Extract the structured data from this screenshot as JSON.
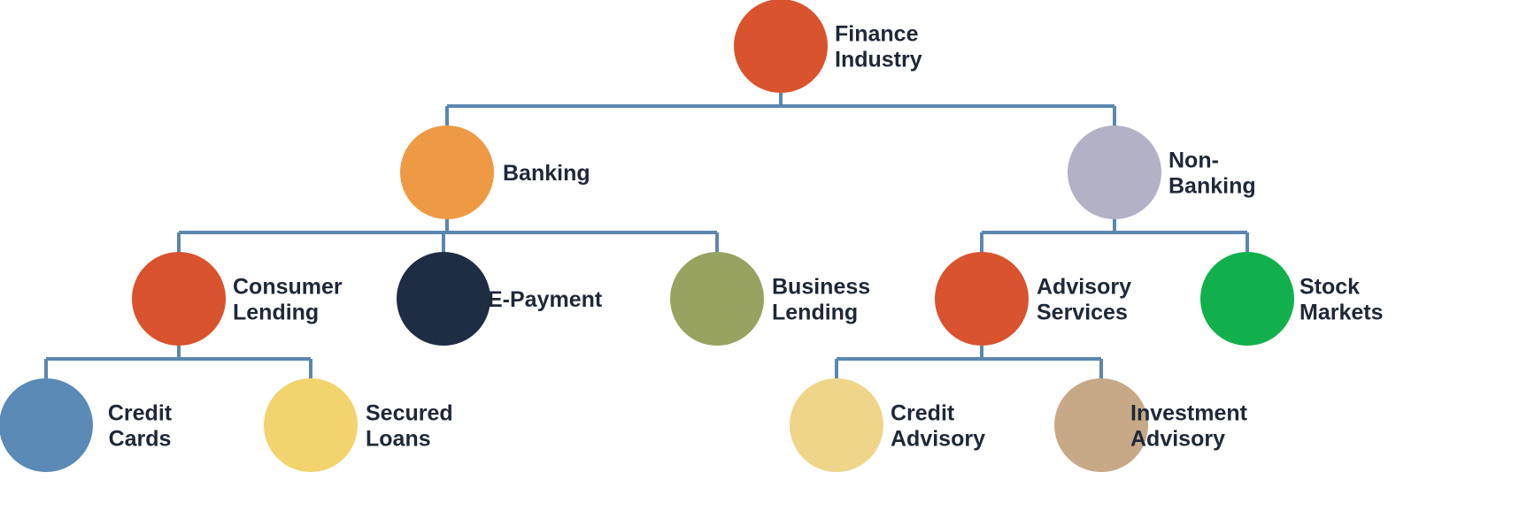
{
  "diagram": {
    "nodes": [
      {
        "id": "finance-industry",
        "label": [
          "Finance",
          "Industry"
        ],
        "color": "#d9532e"
      },
      {
        "id": "banking",
        "label": [
          "Banking"
        ],
        "color": "#ee9a45"
      },
      {
        "id": "non-banking",
        "label": [
          "Non-",
          "Banking"
        ],
        "color": "#b2b1c6"
      },
      {
        "id": "consumer-lending",
        "label": [
          "Consumer",
          "Lending"
        ],
        "color": "#d9532e"
      },
      {
        "id": "e-payment",
        "label": [
          "E-Payment"
        ],
        "color": "#1f2d44"
      },
      {
        "id": "business-lending",
        "label": [
          "Business",
          "Lending"
        ],
        "color": "#98a261"
      },
      {
        "id": "advisory-services",
        "label": [
          "Advisory",
          "Services"
        ],
        "color": "#d9532e"
      },
      {
        "id": "stock-markets",
        "label": [
          "Stock",
          "Markets"
        ],
        "color": "#12b04d"
      },
      {
        "id": "credit-cards",
        "label": [
          "Credit",
          "Cards"
        ],
        "color": "#5a8ab5"
      },
      {
        "id": "secured-loans",
        "label": [
          "Secured",
          "Loans"
        ],
        "color": "#f2d36d"
      },
      {
        "id": "credit-advisory",
        "label": [
          "Credit",
          "Advisory"
        ],
        "color": "#efd589"
      },
      {
        "id": "investment-advisory",
        "label": [
          "Investment",
          "Advisory"
        ],
        "color": "#c8a987"
      }
    ],
    "edges": [
      {
        "parent": "finance-industry",
        "children": [
          "banking",
          "non-banking"
        ]
      },
      {
        "parent": "banking",
        "children": [
          "consumer-lending",
          "e-payment",
          "business-lending"
        ]
      },
      {
        "parent": "non-banking",
        "children": [
          "advisory-services",
          "stock-markets"
        ]
      },
      {
        "parent": "consumer-lending",
        "children": [
          "credit-cards",
          "secured-loans"
        ]
      },
      {
        "parent": "advisory-services",
        "children": [
          "credit-advisory",
          "investment-advisory"
        ]
      }
    ],
    "connector_color": "#5b87b0"
  }
}
